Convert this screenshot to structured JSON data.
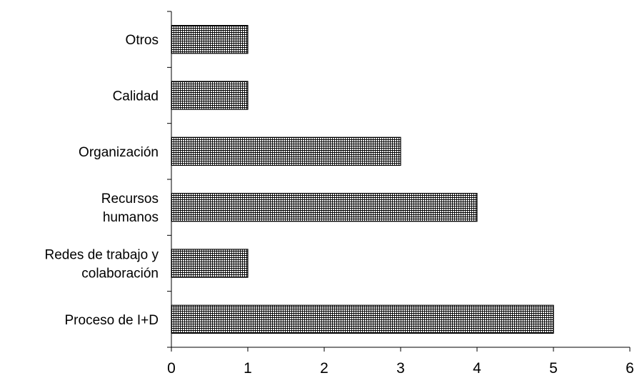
{
  "chart_data": {
    "type": "bar",
    "orientation": "horizontal",
    "categories": [
      "Proceso de I+D",
      "Redes de trabajo y colaboración",
      "Recursos humanos",
      "Organización",
      "Calidad",
      "Otros"
    ],
    "category_lines": [
      [
        "Proceso de I+D"
      ],
      [
        "Redes de trabajo y",
        "colaboración"
      ],
      [
        "Recursos",
        "humanos"
      ],
      [
        "Organización"
      ],
      [
        "Calidad"
      ],
      [
        "Otros"
      ]
    ],
    "values": [
      5,
      1,
      4,
      3,
      1,
      1
    ],
    "xlim": [
      0,
      6
    ],
    "xticks": [
      "0",
      "1",
      "2",
      "3",
      "4",
      "5",
      "6"
    ],
    "title": "",
    "xlabel": "",
    "ylabel": "",
    "grid": false,
    "legend": "none",
    "bar_fill": "crosshatch",
    "colors": {
      "bar_stroke": "#000000",
      "hatch": "#000000",
      "background": "#ffffff",
      "axis": "#000000"
    }
  }
}
